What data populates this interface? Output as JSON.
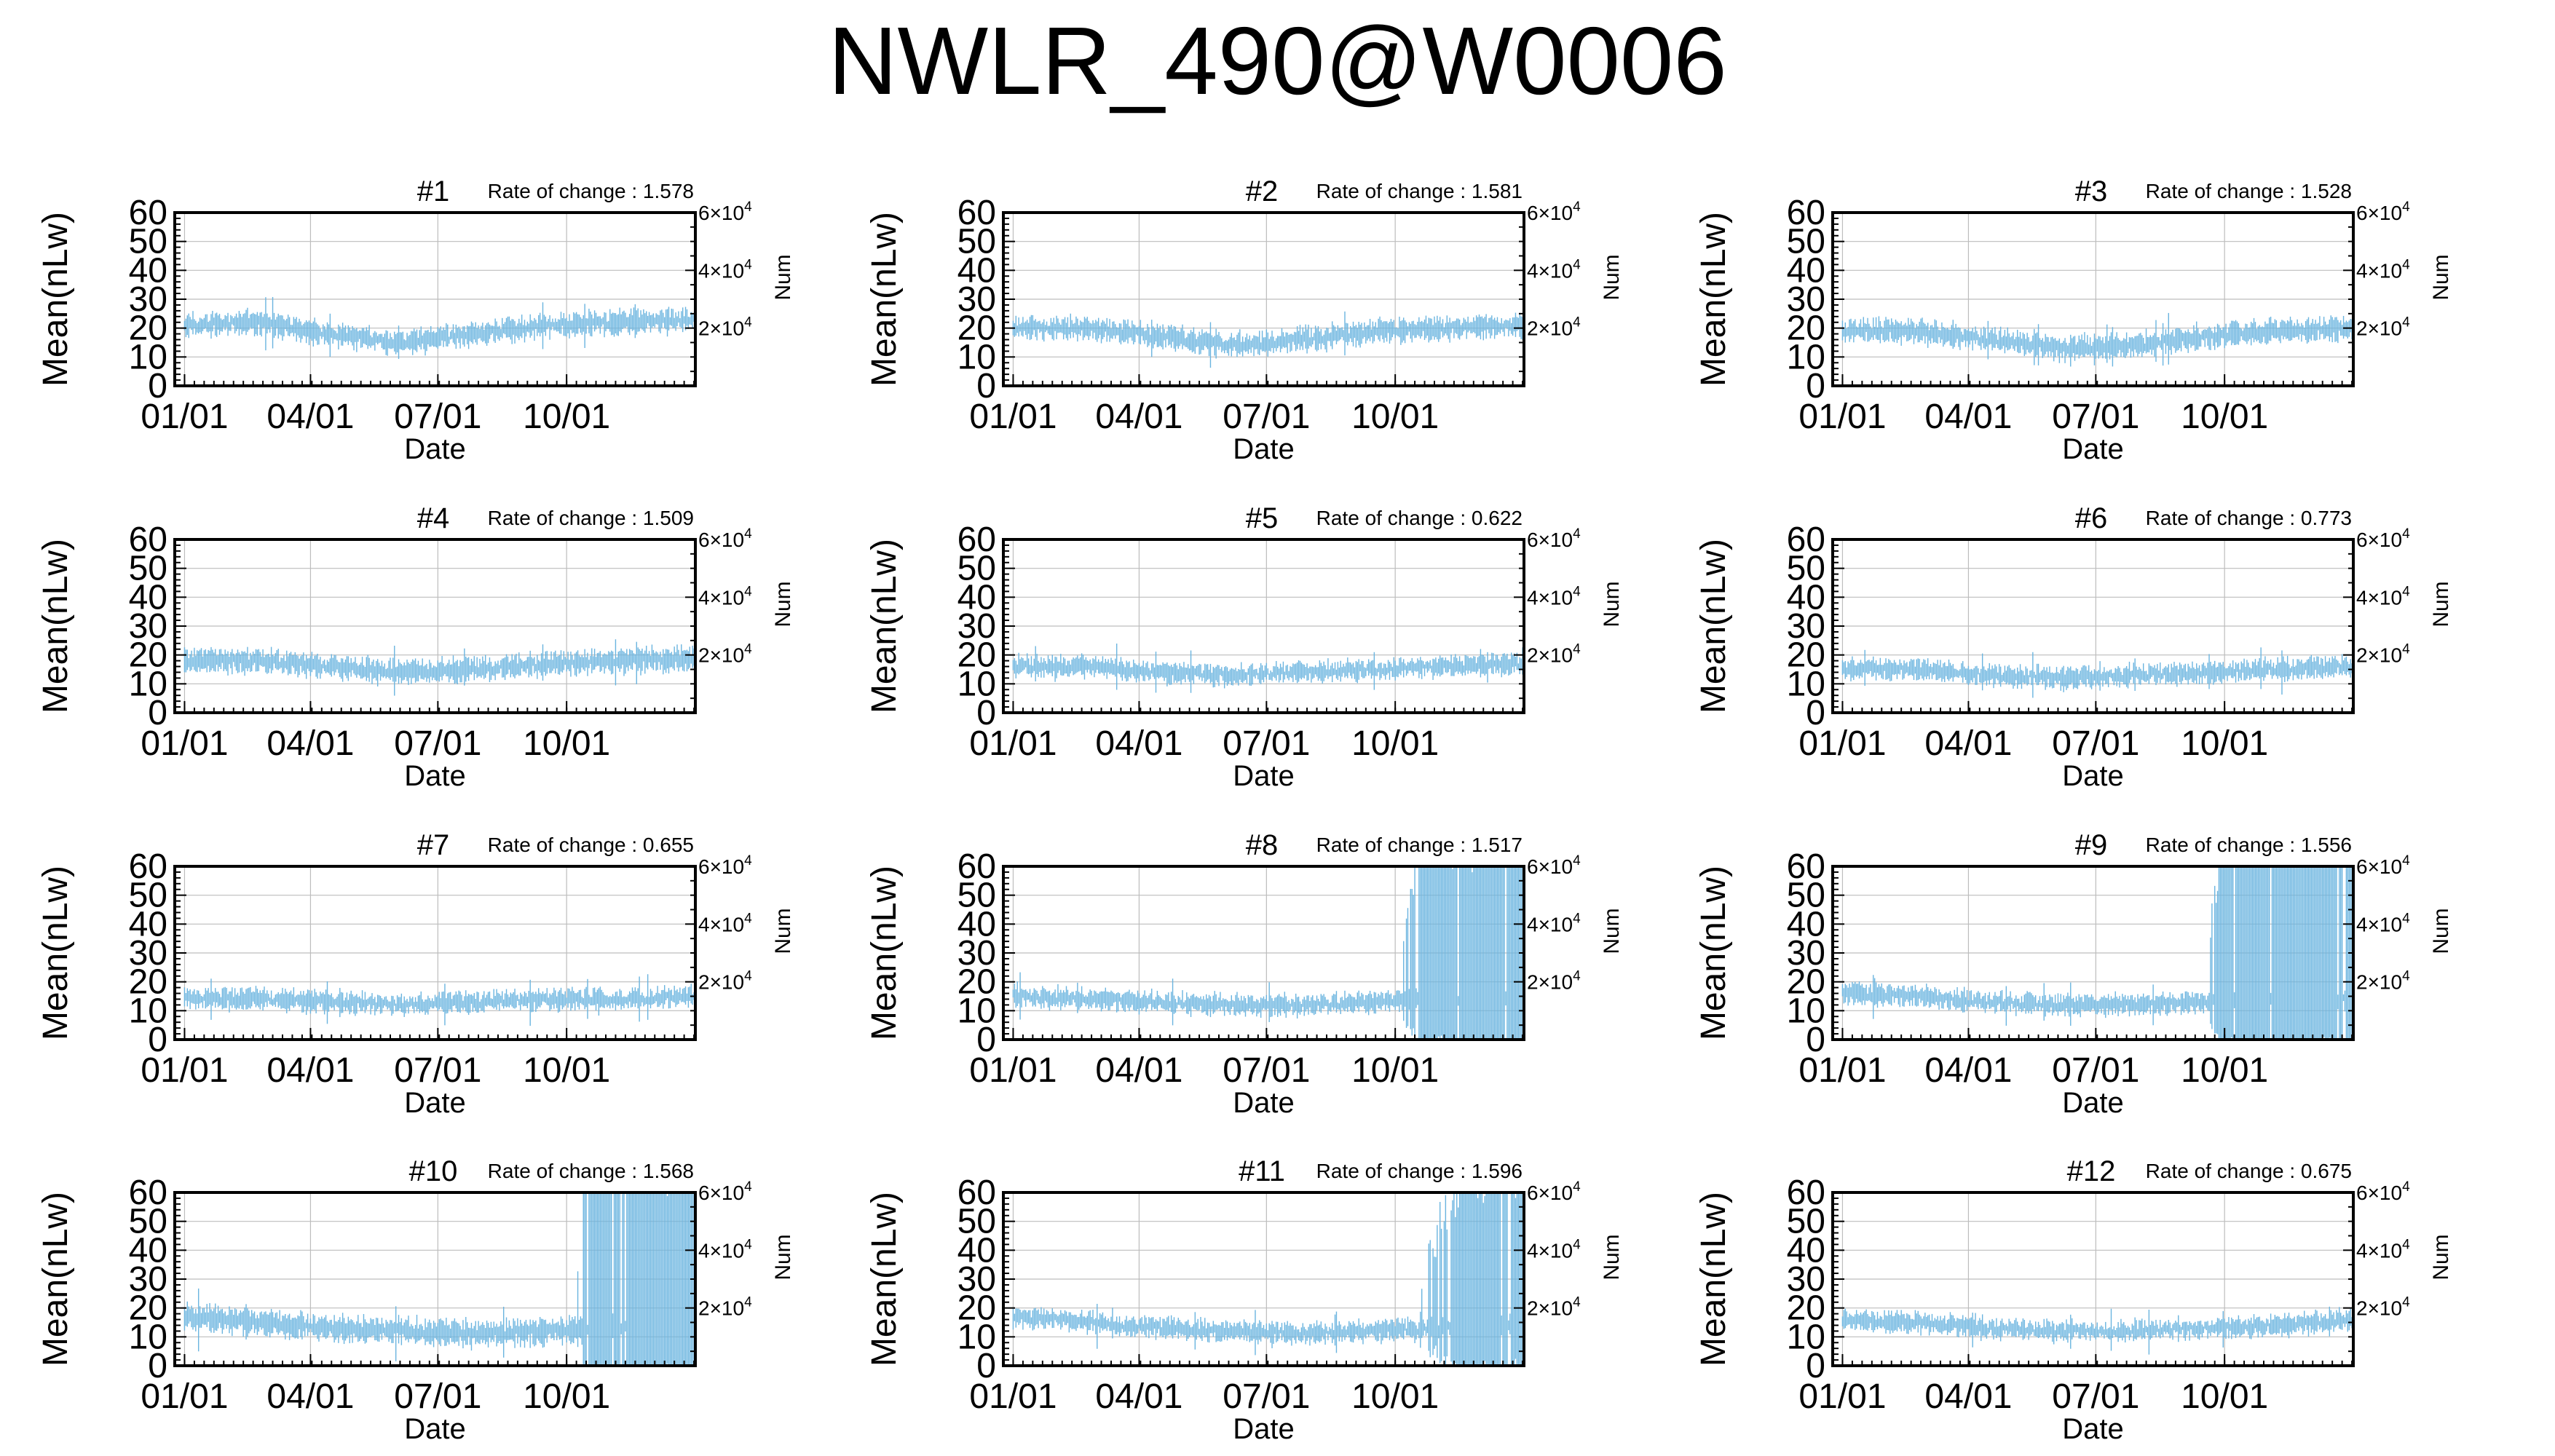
{
  "page": {
    "title": "NWLR_490@W0006"
  },
  "common": {
    "ylabel": "Mean(nLw)",
    "xlabel": "Date",
    "y2label": "Num",
    "rate_prefix": "Rate of change : ",
    "yticks": [
      "0",
      "10",
      "20",
      "30",
      "40",
      "50",
      "60"
    ],
    "y2ticks": [
      {
        "value": 20000,
        "mantissa": "2",
        "exp": "4"
      },
      {
        "value": 40000,
        "mantissa": "4",
        "exp": "4"
      },
      {
        "value": 60000,
        "mantissa": "6",
        "exp": "4"
      }
    ],
    "xticks": [
      "01/01",
      "04/01",
      "07/01",
      "10/01"
    ],
    "xtick_days": [
      0,
      90,
      181,
      273
    ],
    "x_range_days": [
      -7,
      365
    ],
    "ylim": [
      0,
      60
    ],
    "y2lim": [
      0,
      60000
    ],
    "line_color": "#6ab4df",
    "grid": true
  },
  "chart_data": [
    {
      "type": "line",
      "title": "#1",
      "rate": "1.578",
      "base": [
        21,
        22,
        18,
        15,
        18,
        21,
        22,
        23
      ],
      "spread": 3.5,
      "tail": null
    },
    {
      "type": "line",
      "title": "#2",
      "rate": "1.581",
      "base": [
        20,
        20,
        17,
        14,
        16,
        19,
        20,
        21
      ],
      "spread": 3.5,
      "tail": null
    },
    {
      "type": "line",
      "title": "#3",
      "rate": "1.528",
      "base": [
        19,
        19,
        16,
        13,
        14,
        17,
        19,
        20
      ],
      "spread": 3.5,
      "tail": null
    },
    {
      "type": "line",
      "title": "#4",
      "rate": "1.509",
      "base": [
        18,
        18,
        16,
        14,
        15,
        17,
        18,
        19
      ],
      "spread": 3.5,
      "tail": null
    },
    {
      "type": "line",
      "title": "#5",
      "rate": "0.622",
      "base": [
        16,
        16,
        14,
        13,
        14,
        15,
        16,
        17
      ],
      "spread": 3.0,
      "tail": null
    },
    {
      "type": "line",
      "title": "#6",
      "rate": "0.773",
      "base": [
        15,
        15,
        13,
        12,
        13,
        14,
        15,
        16
      ],
      "spread": 3.0,
      "tail": null
    },
    {
      "type": "line",
      "title": "#7",
      "rate": "0.655",
      "base": [
        14,
        14,
        13,
        12,
        13,
        14,
        14,
        15
      ],
      "spread": 3.0,
      "tail": null
    },
    {
      "type": "line",
      "title": "#8",
      "rate": "1.517",
      "base": [
        15,
        14,
        13,
        12,
        12,
        13,
        14,
        14
      ],
      "spread": 3.0,
      "tail": {
        "start_day": 275,
        "ramp_days": 15,
        "spread": 48
      }
    },
    {
      "type": "line",
      "title": "#9",
      "rate": "1.556",
      "base": [
        16,
        15,
        13,
        12,
        12,
        13,
        14,
        14
      ],
      "spread": 3.0,
      "tail": {
        "start_day": 260,
        "ramp_days": 10,
        "spread": 48
      }
    },
    {
      "type": "line",
      "title": "#10",
      "rate": "1.568",
      "base": [
        17,
        15,
        13,
        12,
        11,
        12,
        13,
        14
      ],
      "spread": 4.0,
      "tail": {
        "start_day": 280,
        "ramp_days": 5,
        "spread": 48
      }
    },
    {
      "type": "line",
      "title": "#11",
      "rate": "1.596",
      "base": [
        17,
        15,
        13,
        12,
        11,
        12,
        13,
        14
      ],
      "spread": 3.0,
      "tail": {
        "start_day": 280,
        "ramp_days": 45,
        "spread": 46
      }
    },
    {
      "type": "line",
      "title": "#12",
      "rate": "0.675",
      "base": [
        16,
        15,
        13,
        12,
        12,
        13,
        14,
        16
      ],
      "spread": 3.0,
      "tail": null
    }
  ]
}
